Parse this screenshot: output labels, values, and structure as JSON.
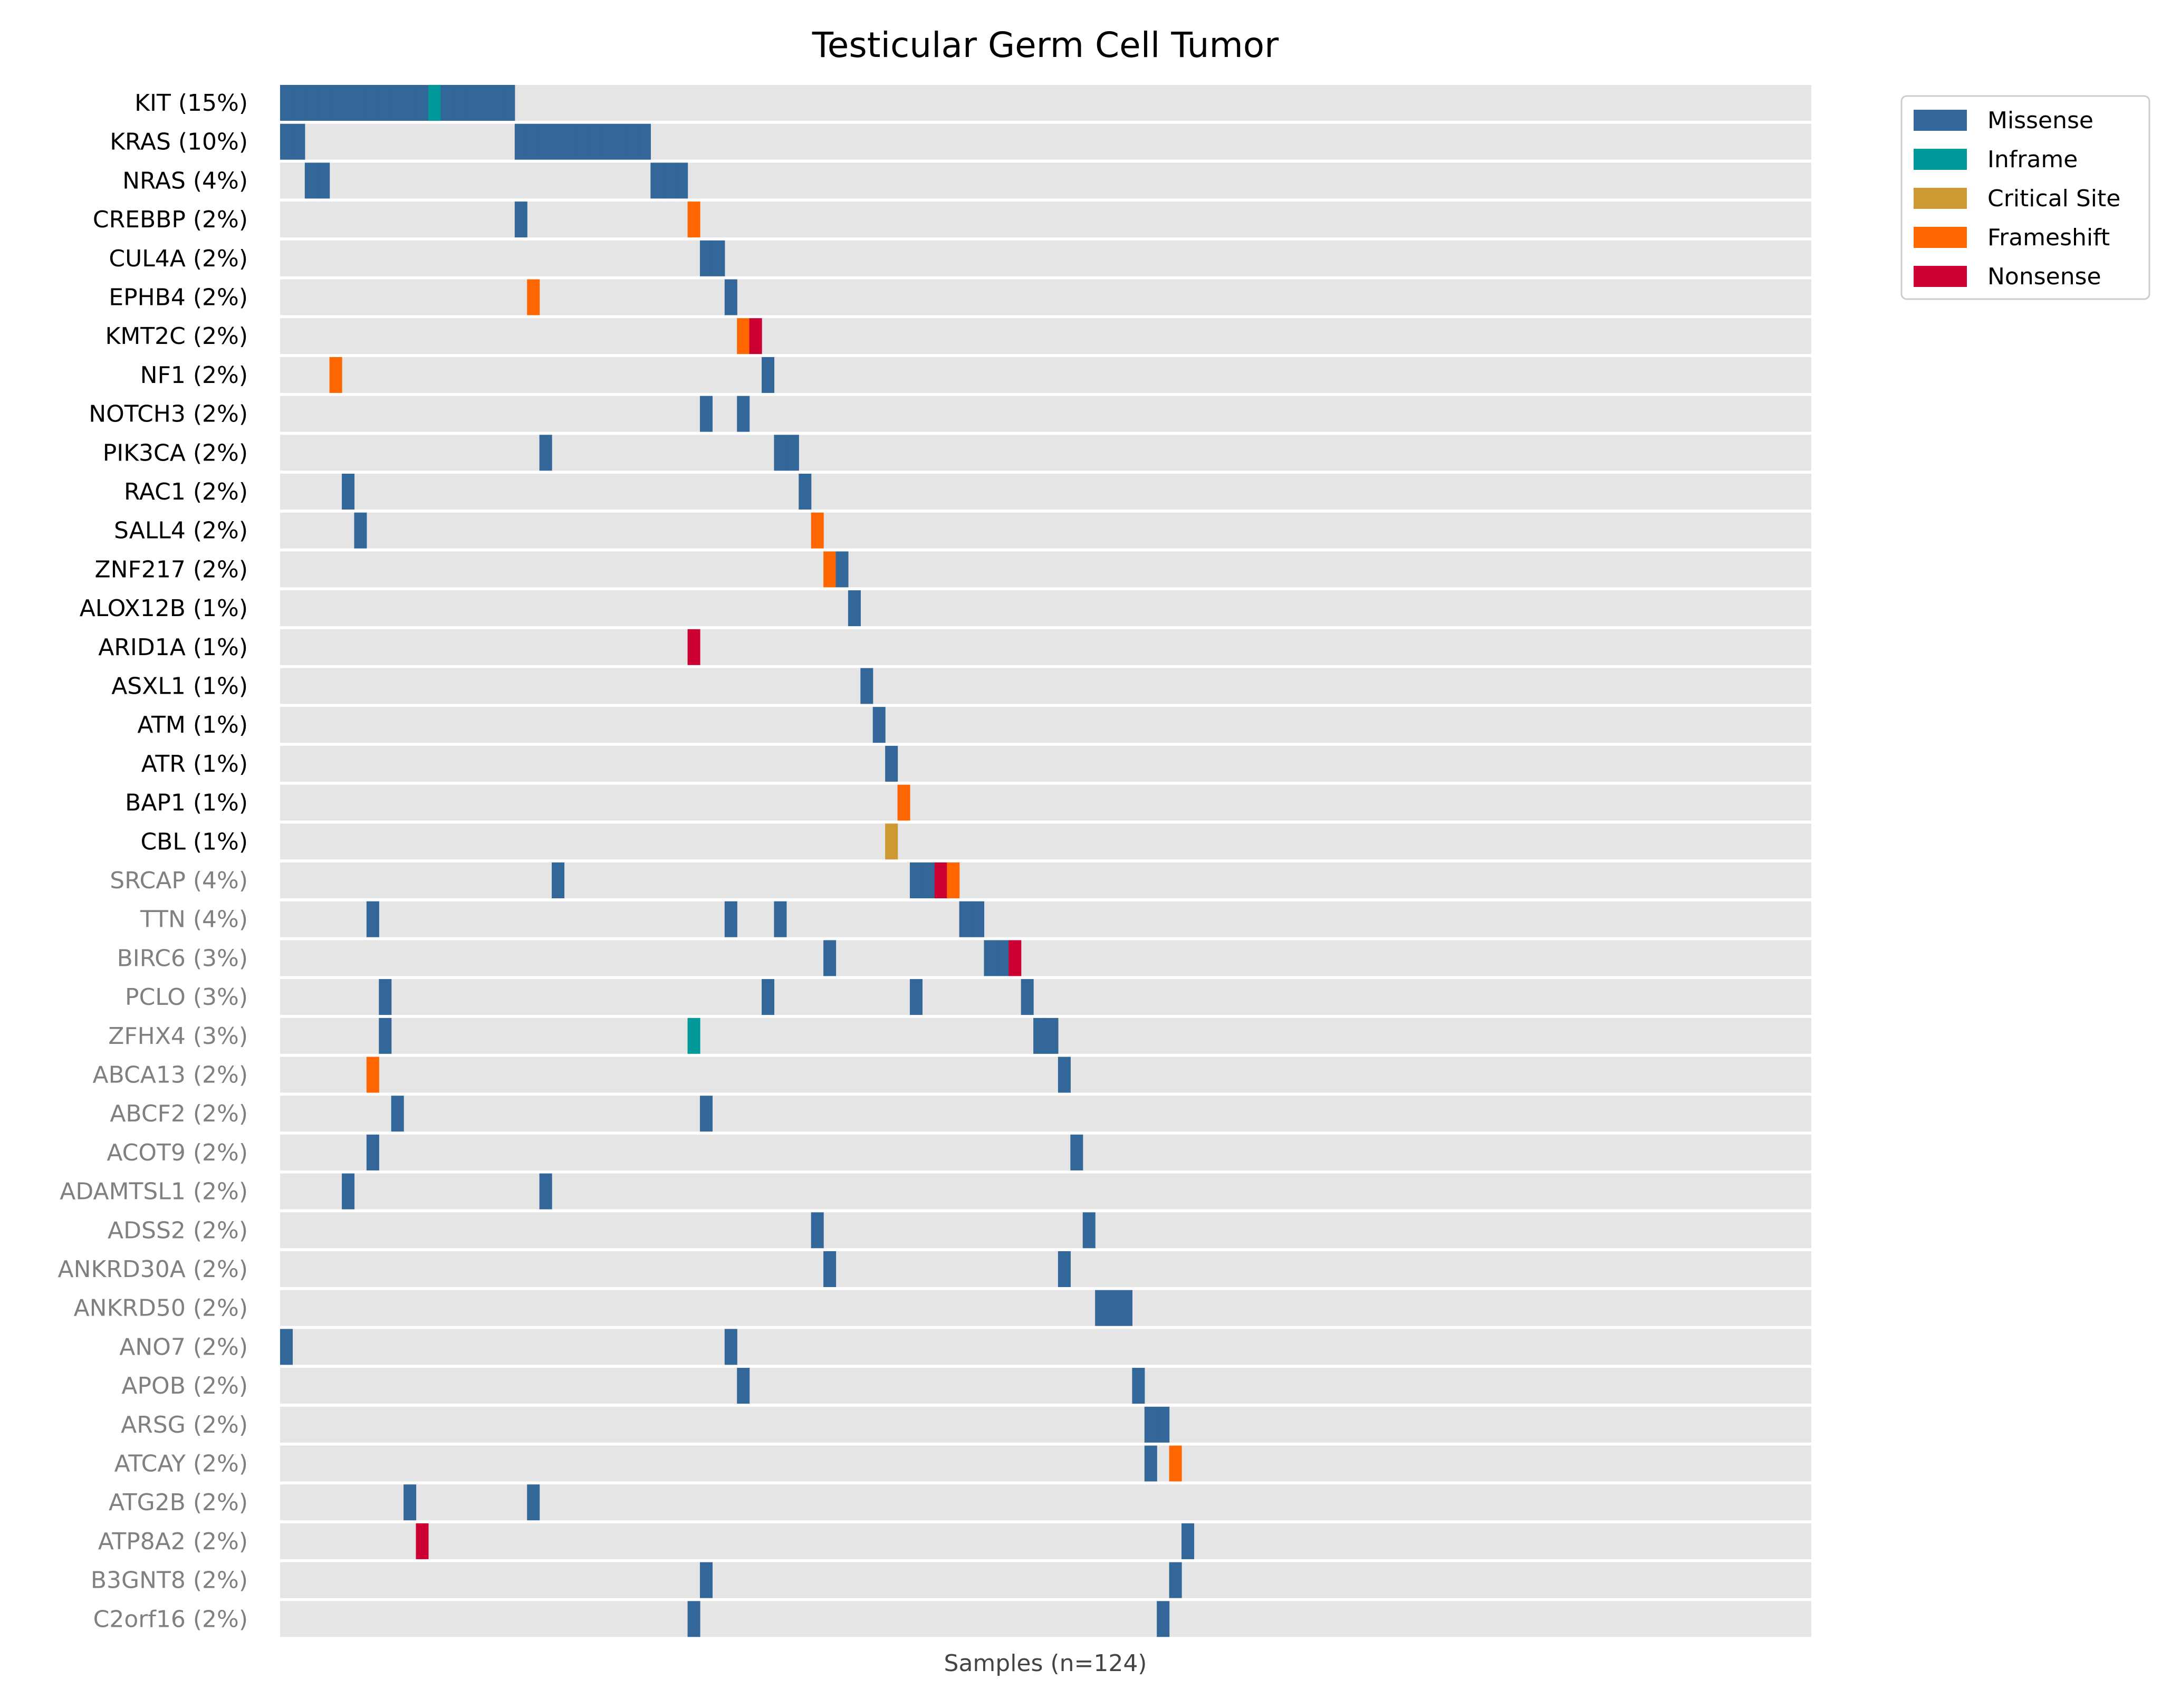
{
  "chart_data": {
    "type": "heatmap",
    "subtype": "oncoprint",
    "title": "Testicular Germ Cell Tumor",
    "xlabel": "Samples (n=124)",
    "n_samples": 124,
    "colors": {
      "background": "#e5e5e5",
      "primary_label": "#000000",
      "secondary_label": "#808080"
    },
    "legend": {
      "placement": "top-right, outside plot",
      "entries": [
        {
          "name": "Missense",
          "color": "#336699"
        },
        {
          "name": "Inframe",
          "color": "#009999"
        },
        {
          "name": "Critical Site",
          "color": "#cc9933"
        },
        {
          "name": "Frameshift",
          "color": "#ff6600"
        },
        {
          "name": "Nonsense",
          "color": "#cc0033"
        }
      ]
    },
    "genes": [
      {
        "label": "KIT (15%)",
        "tier": "primary",
        "mutations": [
          [
            0,
            "Missense"
          ],
          [
            1,
            "Missense"
          ],
          [
            2,
            "Missense"
          ],
          [
            3,
            "Missense"
          ],
          [
            4,
            "Missense"
          ],
          [
            5,
            "Missense"
          ],
          [
            6,
            "Missense"
          ],
          [
            7,
            "Missense"
          ],
          [
            8,
            "Missense"
          ],
          [
            9,
            "Missense"
          ],
          [
            10,
            "Missense"
          ],
          [
            11,
            "Missense"
          ],
          [
            12,
            "Inframe"
          ],
          [
            13,
            "Missense"
          ],
          [
            14,
            "Missense"
          ],
          [
            15,
            "Missense"
          ],
          [
            16,
            "Missense"
          ],
          [
            17,
            "Missense"
          ],
          [
            18,
            "Missense"
          ]
        ]
      },
      {
        "label": "KRAS (10%)",
        "tier": "primary",
        "mutations": [
          [
            0,
            "Missense"
          ],
          [
            1,
            "Missense"
          ],
          [
            19,
            "Missense"
          ],
          [
            20,
            "Missense"
          ],
          [
            21,
            "Missense"
          ],
          [
            22,
            "Missense"
          ],
          [
            23,
            "Missense"
          ],
          [
            24,
            "Missense"
          ],
          [
            25,
            "Missense"
          ],
          [
            26,
            "Missense"
          ],
          [
            27,
            "Missense"
          ],
          [
            28,
            "Missense"
          ],
          [
            29,
            "Missense"
          ]
        ]
      },
      {
        "label": "NRAS (4%)",
        "tier": "primary",
        "mutations": [
          [
            2,
            "Missense"
          ],
          [
            3,
            "Missense"
          ],
          [
            30,
            "Missense"
          ],
          [
            31,
            "Missense"
          ],
          [
            32,
            "Missense"
          ]
        ]
      },
      {
        "label": "CREBBP (2%)",
        "tier": "primary",
        "mutations": [
          [
            19,
            "Missense"
          ],
          [
            33,
            "Frameshift"
          ]
        ]
      },
      {
        "label": "CUL4A (2%)",
        "tier": "primary",
        "mutations": [
          [
            34,
            "Missense"
          ],
          [
            35,
            "Missense"
          ]
        ]
      },
      {
        "label": "EPHB4 (2%)",
        "tier": "primary",
        "mutations": [
          [
            20,
            "Frameshift"
          ],
          [
            36,
            "Missense"
          ]
        ]
      },
      {
        "label": "KMT2C (2%)",
        "tier": "primary",
        "mutations": [
          [
            37,
            "Frameshift"
          ],
          [
            38,
            "Nonsense"
          ]
        ]
      },
      {
        "label": "NF1 (2%)",
        "tier": "primary",
        "mutations": [
          [
            4,
            "Frameshift"
          ],
          [
            39,
            "Missense"
          ]
        ]
      },
      {
        "label": "NOTCH3 (2%)",
        "tier": "primary",
        "mutations": [
          [
            34,
            "Missense"
          ],
          [
            37,
            "Missense"
          ]
        ]
      },
      {
        "label": "PIK3CA (2%)",
        "tier": "primary",
        "mutations": [
          [
            21,
            "Missense"
          ],
          [
            40,
            "Missense"
          ],
          [
            41,
            "Missense"
          ]
        ]
      },
      {
        "label": "RAC1 (2%)",
        "tier": "primary",
        "mutations": [
          [
            5,
            "Missense"
          ],
          [
            42,
            "Missense"
          ]
        ]
      },
      {
        "label": "SALL4 (2%)",
        "tier": "primary",
        "mutations": [
          [
            6,
            "Missense"
          ],
          [
            43,
            "Frameshift"
          ]
        ]
      },
      {
        "label": "ZNF217 (2%)",
        "tier": "primary",
        "mutations": [
          [
            44,
            "Frameshift"
          ],
          [
            45,
            "Missense"
          ]
        ]
      },
      {
        "label": "ALOX12B (1%)",
        "tier": "primary",
        "mutations": [
          [
            46,
            "Missense"
          ]
        ]
      },
      {
        "label": "ARID1A (1%)",
        "tier": "primary",
        "mutations": [
          [
            33,
            "Nonsense"
          ]
        ]
      },
      {
        "label": "ASXL1 (1%)",
        "tier": "primary",
        "mutations": [
          [
            47,
            "Missense"
          ]
        ]
      },
      {
        "label": "ATM (1%)",
        "tier": "primary",
        "mutations": [
          [
            48,
            "Missense"
          ]
        ]
      },
      {
        "label": "ATR (1%)",
        "tier": "primary",
        "mutations": [
          [
            49,
            "Missense"
          ]
        ]
      },
      {
        "label": "BAP1 (1%)",
        "tier": "primary",
        "mutations": [
          [
            50,
            "Frameshift"
          ]
        ]
      },
      {
        "label": "CBL (1%)",
        "tier": "primary",
        "mutations": [
          [
            49,
            "Critical Site"
          ]
        ]
      },
      {
        "label": "SRCAP (4%)",
        "tier": "secondary",
        "mutations": [
          [
            22,
            "Missense"
          ],
          [
            51,
            "Missense"
          ],
          [
            52,
            "Missense"
          ],
          [
            53,
            "Nonsense"
          ],
          [
            54,
            "Frameshift"
          ]
        ]
      },
      {
        "label": "TTN (4%)",
        "tier": "secondary",
        "mutations": [
          [
            7,
            "Missense"
          ],
          [
            36,
            "Missense"
          ],
          [
            40,
            "Missense"
          ],
          [
            55,
            "Missense"
          ],
          [
            56,
            "Missense"
          ]
        ]
      },
      {
        "label": "BIRC6 (3%)",
        "tier": "secondary",
        "mutations": [
          [
            44,
            "Missense"
          ],
          [
            57,
            "Missense"
          ],
          [
            58,
            "Missense"
          ],
          [
            59,
            "Nonsense"
          ]
        ]
      },
      {
        "label": "PCLO (3%)",
        "tier": "secondary",
        "mutations": [
          [
            8,
            "Missense"
          ],
          [
            39,
            "Missense"
          ],
          [
            51,
            "Missense"
          ],
          [
            60,
            "Missense"
          ]
        ]
      },
      {
        "label": "ZFHX4 (3%)",
        "tier": "secondary",
        "mutations": [
          [
            8,
            "Missense"
          ],
          [
            33,
            "Inframe"
          ],
          [
            61,
            "Missense"
          ],
          [
            62,
            "Missense"
          ]
        ]
      },
      {
        "label": "ABCA13 (2%)",
        "tier": "secondary",
        "mutations": [
          [
            7,
            "Frameshift"
          ],
          [
            63,
            "Missense"
          ]
        ]
      },
      {
        "label": "ABCF2 (2%)",
        "tier": "secondary",
        "mutations": [
          [
            9,
            "Missense"
          ],
          [
            34,
            "Missense"
          ]
        ]
      },
      {
        "label": "ACOT9 (2%)",
        "tier": "secondary",
        "mutations": [
          [
            7,
            "Missense"
          ],
          [
            64,
            "Missense"
          ]
        ]
      },
      {
        "label": "ADAMTSL1 (2%)",
        "tier": "secondary",
        "mutations": [
          [
            5,
            "Missense"
          ],
          [
            21,
            "Missense"
          ]
        ]
      },
      {
        "label": "ADSS2 (2%)",
        "tier": "secondary",
        "mutations": [
          [
            43,
            "Missense"
          ],
          [
            65,
            "Missense"
          ]
        ]
      },
      {
        "label": "ANKRD30A (2%)",
        "tier": "secondary",
        "mutations": [
          [
            44,
            "Missense"
          ],
          [
            63,
            "Missense"
          ]
        ]
      },
      {
        "label": "ANKRD50 (2%)",
        "tier": "secondary",
        "mutations": [
          [
            66,
            "Missense"
          ],
          [
            67,
            "Missense"
          ],
          [
            68,
            "Missense"
          ]
        ]
      },
      {
        "label": "ANO7 (2%)",
        "tier": "secondary",
        "mutations": [
          [
            0,
            "Missense"
          ],
          [
            36,
            "Missense"
          ]
        ]
      },
      {
        "label": "APOB (2%)",
        "tier": "secondary",
        "mutations": [
          [
            37,
            "Missense"
          ],
          [
            69,
            "Missense"
          ]
        ]
      },
      {
        "label": "ARSG (2%)",
        "tier": "secondary",
        "mutations": [
          [
            70,
            "Missense"
          ],
          [
            71,
            "Missense"
          ]
        ]
      },
      {
        "label": "ATCAY (2%)",
        "tier": "secondary",
        "mutations": [
          [
            70,
            "Missense"
          ],
          [
            72,
            "Frameshift"
          ]
        ]
      },
      {
        "label": "ATG2B (2%)",
        "tier": "secondary",
        "mutations": [
          [
            10,
            "Missense"
          ],
          [
            20,
            "Missense"
          ]
        ]
      },
      {
        "label": "ATP8A2 (2%)",
        "tier": "secondary",
        "mutations": [
          [
            11,
            "Nonsense"
          ],
          [
            73,
            "Missense"
          ]
        ]
      },
      {
        "label": "B3GNT8 (2%)",
        "tier": "secondary",
        "mutations": [
          [
            34,
            "Missense"
          ],
          [
            72,
            "Missense"
          ]
        ]
      },
      {
        "label": "C2orf16 (2%)",
        "tier": "secondary",
        "mutations": [
          [
            33,
            "Missense"
          ],
          [
            71,
            "Missense"
          ]
        ]
      }
    ]
  }
}
